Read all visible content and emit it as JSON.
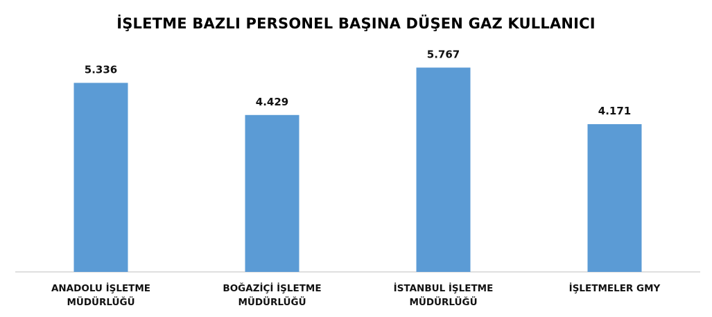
{
  "chart_data": {
    "type": "bar",
    "title": "İŞLETME BAZLI PERSONEL BAŞINA DÜŞEN GAZ KULLANICI",
    "categories": [
      [
        "ANADOLU İŞLETME",
        "MÜDÜRLÜĞÜ"
      ],
      [
        "BOĞAZİÇİ İŞLETME",
        "MÜDÜRLÜĞÜ"
      ],
      [
        "İSTANBUL İŞLETME",
        "MÜDÜRLÜĞÜ"
      ],
      [
        "İŞLETMELER GMY"
      ]
    ],
    "values": [
      5336,
      4429,
      5767,
      4171
    ],
    "value_labels": [
      "5.336",
      "4.429",
      "5.767",
      "4.171"
    ],
    "ylim": [
      0,
      6500
    ],
    "grid": false,
    "legend": "none",
    "bar_color": "#5B9BD5",
    "axis_color": "#BFBFBF"
  }
}
